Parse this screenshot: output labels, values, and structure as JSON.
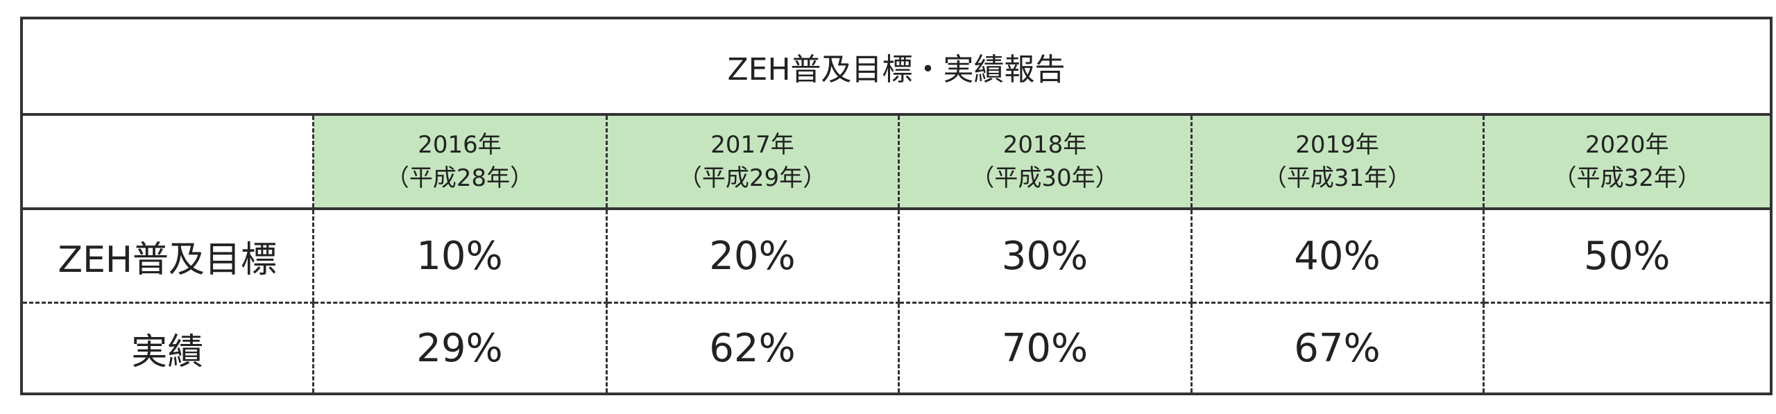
{
  "table": {
    "title": "ZEH普及目標・実績報告",
    "headers": [
      [
        "2016年",
        "（平成28年）"
      ],
      [
        "2017年",
        "（平成29年）"
      ],
      [
        "2018年",
        "（平成30年）"
      ],
      [
        "2019年",
        "（平成31年）"
      ],
      [
        "2020年",
        "（平成32年）"
      ]
    ],
    "rows": [
      {
        "label": "ZEH普及目標",
        "cells": [
          "10%",
          "20%",
          "30%",
          "40%",
          "50%"
        ]
      },
      {
        "label": "実績",
        "cells": [
          "29%",
          "62%",
          "70%",
          "67%"
        ]
      }
    ]
  }
}
